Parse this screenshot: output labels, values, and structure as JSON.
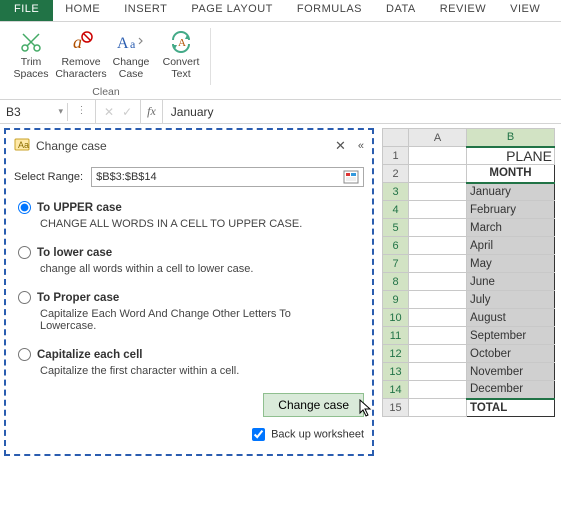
{
  "ribbon": {
    "tabs": [
      "FILE",
      "HOME",
      "INSERT",
      "PAGE LAYOUT",
      "FORMULAS",
      "DATA",
      "REVIEW",
      "VIEW"
    ],
    "group_name": "Clean",
    "buttons": {
      "trim": "Trim\nSpaces",
      "remove": "Remove\nCharacters",
      "change": "Change\nCase",
      "convert": "Convert\nText"
    }
  },
  "formula_bar": {
    "name_box": "B3",
    "value": "January"
  },
  "pane": {
    "title": "Change case",
    "select_label": "Select Range:",
    "range": "$B$3:$B$14",
    "options": {
      "upper": {
        "label": "To UPPER case",
        "desc": "CHANGE ALL WORDS IN A CELL TO UPPER CASE."
      },
      "lower": {
        "label": "To lower case",
        "desc": "change all words within a cell to lower case."
      },
      "proper": {
        "label": "To Proper case",
        "desc": "Capitalize Each Word And Change Other Letters To Lowercase."
      },
      "cap": {
        "label": "Capitalize each cell",
        "desc": "Capitalize the first character within a cell."
      }
    },
    "button": "Change case",
    "backup": "Back up worksheet"
  },
  "sheet": {
    "col_headers": [
      "A",
      "B"
    ],
    "plane": "PLANE",
    "month_header": "MONTH",
    "months": [
      "January",
      "February",
      "March",
      "April",
      "May",
      "June",
      "July",
      "August",
      "September",
      "October",
      "November",
      "December"
    ],
    "total": "TOTAL",
    "row_numbers": [
      1,
      2,
      3,
      4,
      5,
      6,
      7,
      8,
      9,
      10,
      11,
      12,
      13,
      14,
      15
    ]
  }
}
